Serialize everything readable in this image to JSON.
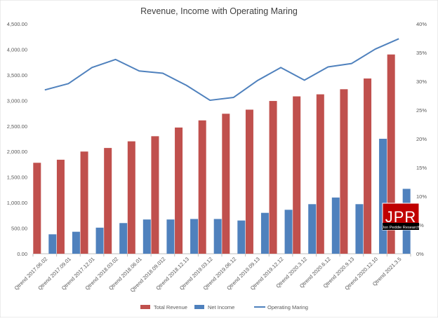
{
  "chart_data": {
    "type": "bar",
    "title": "Revenue, Income with Operating Maring",
    "categories": [
      "Qtrend 2017.06.02",
      "Qtrend 2017.09.01",
      "Qtrend 2017.12.01",
      "Qtrend 2018.03.02",
      "Qtrend 2018.06.01",
      "Qtrend 2018.09.012",
      "Qtrend 2018.12.13",
      "Qtrend 2019.03.12",
      "Qtrend 2019.06.12",
      "Qtrend 2019.09.13",
      "Qtrend 2019.12.12",
      "Qtrend 2020.3.12",
      "Qtrend 2020.6.12",
      "Qtrend 2020.9.13",
      "Qtrend 2020.12.10",
      "Qtrend 2021.3.5"
    ],
    "series": [
      {
        "name": "Total Revenue",
        "type": "bar",
        "axis": "left",
        "color": "#c0504d",
        "values": [
          1780,
          1840,
          2000,
          2070,
          2200,
          2300,
          2470,
          2610,
          2740,
          2820,
          2990,
          3080,
          3120,
          3220,
          3430,
          3900
        ]
      },
      {
        "name": "Net Income",
        "type": "bar",
        "axis": "left",
        "color": "#4f81bd",
        "values": [
          380,
          430,
          510,
          600,
          670,
          670,
          680,
          680,
          650,
          800,
          860,
          970,
          1100,
          970,
          2250,
          1270
        ]
      },
      {
        "name": "Operating Maring",
        "type": "line",
        "axis": "right",
        "color": "#4f81bd",
        "values": [
          0.285,
          0.296,
          0.324,
          0.338,
          0.318,
          0.314,
          0.293,
          0.267,
          0.272,
          0.301,
          0.324,
          0.302,
          0.325,
          0.331,
          0.356,
          0.374
        ]
      }
    ],
    "y_left": {
      "min": 0,
      "max": 4500,
      "step": 500,
      "tick_labels": [
        "0.00",
        "500.00",
        "1,000.00",
        "1,500.00",
        "2,000.00",
        "2,500.00",
        "3,000.00",
        "3,500.00",
        "4,000.00",
        "4,500.00"
      ]
    },
    "y_right": {
      "min": 0,
      "max": 0.4,
      "step": 0.05,
      "tick_labels": [
        "0%",
        "5%",
        "10%",
        "15%",
        "20%",
        "25%",
        "30%",
        "35%",
        "40%"
      ]
    },
    "grid": false,
    "legend": {
      "position": "bottom",
      "entries": [
        "Total Revenue",
        "Net Income",
        "Operating Maring"
      ]
    },
    "watermark": {
      "logo_text": "JPR",
      "sub_text": "Jon Peddie Research"
    }
  }
}
